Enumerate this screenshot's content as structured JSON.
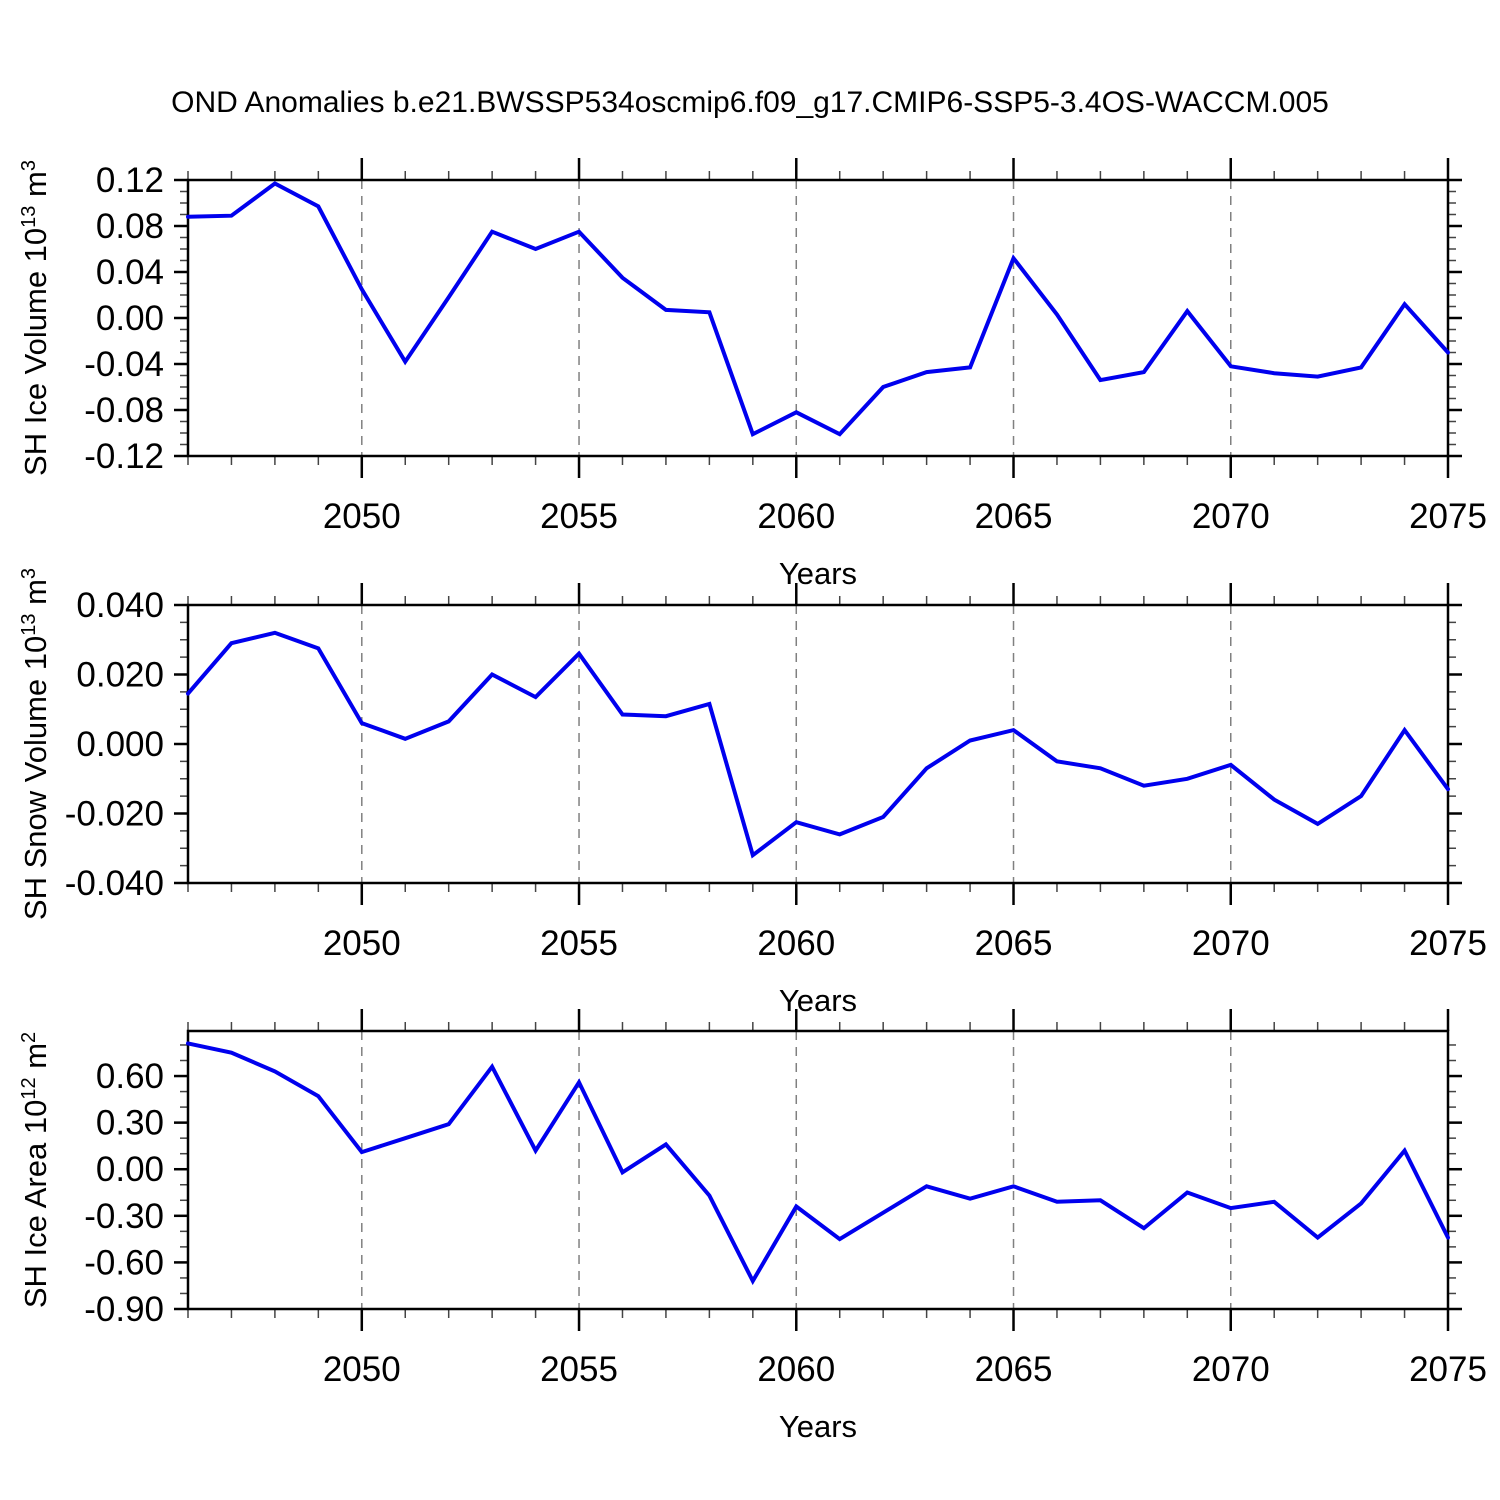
{
  "title": "OND Anomalies b.e21.BWSSP534oscmip6.f09_g17.CMIP6-SSP5-3.4OS-WACCM.005",
  "colors": {
    "line": "#0000EE",
    "grid": "#808080",
    "axis": "#000000",
    "minor_tick": "#444444",
    "text": "#000000",
    "background": "#FFFFFF"
  },
  "chart_data": [
    {
      "type": "line",
      "panel": "sh-ice-volume",
      "ylabel": "SH Ice Volume 10^13 m^3",
      "ylabel_rich": [
        {
          "t": "SH Ice Volume 10"
        },
        {
          "t": "13",
          "sup": true
        },
        {
          "t": " m"
        },
        {
          "t": "3",
          "sup": true
        }
      ],
      "xlabel": "Years",
      "x": [
        2046,
        2047,
        2048,
        2049,
        2050,
        2051,
        2052,
        2053,
        2054,
        2055,
        2056,
        2057,
        2058,
        2059,
        2060,
        2061,
        2062,
        2063,
        2064,
        2065,
        2066,
        2067,
        2068,
        2069,
        2070,
        2071,
        2072,
        2073,
        2074,
        2075
      ],
      "values": [
        0.088,
        0.089,
        0.117,
        0.097,
        0.025,
        -0.038,
        0.018,
        0.075,
        0.06,
        0.075,
        0.035,
        0.007,
        0.005,
        -0.101,
        -0.082,
        -0.101,
        -0.06,
        -0.047,
        -0.043,
        0.052,
        0.003,
        -0.054,
        -0.047,
        0.006,
        -0.042,
        -0.048,
        -0.051,
        -0.043,
        0.012,
        -0.03
      ],
      "xlim": [
        2046,
        2075
      ],
      "ylim": [
        -0.12,
        0.12
      ],
      "yticks": [
        0.12,
        0.08,
        0.04,
        0.0,
        -0.04,
        -0.08,
        -0.12
      ],
      "ytick_decimals": 2,
      "yminor_step": 0.01,
      "xticks": [
        2050,
        2055,
        2060,
        2065,
        2070,
        2075
      ],
      "xminor_step": 1,
      "grid_x": [
        2050,
        2055,
        2060,
        2065,
        2070
      ],
      "grid_style": "vertical-dashed",
      "legend": "none"
    },
    {
      "type": "line",
      "panel": "sh-snow-volume",
      "ylabel": "SH Snow Volume 10^13 m^3",
      "ylabel_rich": [
        {
          "t": "SH Snow Volume 10"
        },
        {
          "t": "13",
          "sup": true
        },
        {
          "t": " m"
        },
        {
          "t": "3",
          "sup": true
        }
      ],
      "xlabel": "Years",
      "x": [
        2046,
        2047,
        2048,
        2049,
        2050,
        2051,
        2052,
        2053,
        2054,
        2055,
        2056,
        2057,
        2058,
        2059,
        2060,
        2061,
        2062,
        2063,
        2064,
        2065,
        2066,
        2067,
        2068,
        2069,
        2070,
        2071,
        2072,
        2073,
        2074,
        2075
      ],
      "values": [
        0.0145,
        0.029,
        0.032,
        0.0275,
        0.006,
        0.0015,
        0.0065,
        0.02,
        0.0135,
        0.026,
        0.0085,
        0.008,
        0.0115,
        -0.032,
        -0.0225,
        -0.026,
        -0.021,
        -0.007,
        0.001,
        0.004,
        -0.005,
        -0.007,
        -0.012,
        -0.01,
        -0.006,
        -0.016,
        -0.023,
        -0.015,
        0.004,
        -0.013
      ],
      "xlim": [
        2046,
        2075
      ],
      "ylim": [
        -0.04,
        0.04
      ],
      "yticks": [
        0.04,
        0.02,
        0.0,
        -0.02,
        -0.04
      ],
      "ytick_decimals": 3,
      "yminor_step": 0.005,
      "xticks": [
        2050,
        2055,
        2060,
        2065,
        2070,
        2075
      ],
      "xminor_step": 1,
      "grid_x": [
        2050,
        2055,
        2060,
        2065,
        2070
      ],
      "grid_style": "vertical-dashed",
      "legend": "none"
    },
    {
      "type": "line",
      "panel": "sh-ice-area",
      "ylabel": "SH Ice Area 10^12 m^2",
      "ylabel_rich": [
        {
          "t": "SH Ice Area 10"
        },
        {
          "t": "12",
          "sup": true
        },
        {
          "t": " m"
        },
        {
          "t": "2",
          "sup": true
        }
      ],
      "xlabel": "Years",
      "x": [
        2046,
        2047,
        2048,
        2049,
        2050,
        2051,
        2052,
        2053,
        2054,
        2055,
        2056,
        2057,
        2058,
        2059,
        2060,
        2061,
        2062,
        2063,
        2064,
        2065,
        2066,
        2067,
        2068,
        2069,
        2070,
        2071,
        2072,
        2073,
        2074,
        2075
      ],
      "values": [
        0.81,
        0.75,
        0.63,
        0.47,
        0.11,
        0.2,
        0.29,
        0.66,
        0.12,
        0.56,
        -0.02,
        0.16,
        -0.17,
        -0.72,
        -0.24,
        -0.45,
        -0.28,
        -0.11,
        -0.19,
        -0.11,
        -0.21,
        -0.2,
        -0.38,
        -0.15,
        -0.25,
        -0.21,
        -0.44,
        -0.22,
        0.12,
        -0.44
      ],
      "xlim": [
        2046,
        2075
      ],
      "ylim": [
        -0.9,
        0.89
      ],
      "yticks": [
        0.6,
        0.3,
        0.0,
        -0.3,
        -0.6,
        -0.9
      ],
      "ytick_decimals": 2,
      "yminor_step": 0.1,
      "xticks": [
        2050,
        2055,
        2060,
        2065,
        2070,
        2075
      ],
      "xminor_step": 1,
      "grid_x": [
        2050,
        2055,
        2060,
        2065,
        2070
      ],
      "grid_style": "vertical-dashed",
      "legend": "none"
    }
  ]
}
